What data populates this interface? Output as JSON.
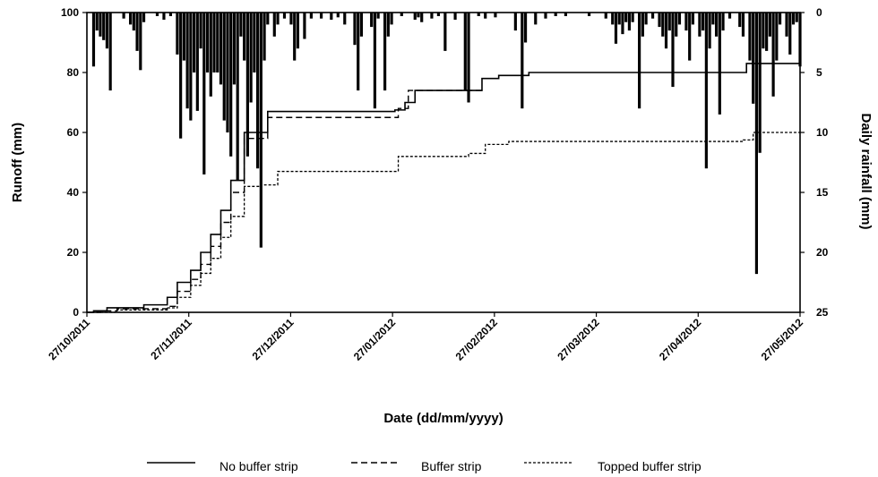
{
  "chart_data": {
    "type": "line",
    "title": "",
    "xlabel": "Date (dd/mm/yyyy)",
    "ylabel": "Runoff (mm)",
    "y2label": "Daily rainfall (mm)",
    "ylim": [
      0,
      100
    ],
    "y2lim": [
      0,
      25
    ],
    "y2_inverted": true,
    "xlim": [
      "2011-10-27",
      "2012-05-27"
    ],
    "y_ticks": [
      "0",
      "20",
      "40",
      "60",
      "80",
      "100"
    ],
    "y2_ticks": [
      "0",
      "5",
      "10",
      "15",
      "20",
      "25"
    ],
    "x_ticks": [
      "27/10/2011",
      "27/11/2011",
      "27/12/2011",
      "27/01/2012",
      "27/02/2012",
      "27/03/2012",
      "27/04/2012",
      "27/05/2012"
    ],
    "grid": false,
    "legend_position": "bottom",
    "series": [
      {
        "name": "No buffer strip",
        "dash": "solid",
        "points": [
          [
            "2011-10-27",
            0
          ],
          [
            "2011-10-29",
            0.5
          ],
          [
            "2011-11-02",
            1.5
          ],
          [
            "2011-11-13",
            2.5
          ],
          [
            "2011-11-20",
            5
          ],
          [
            "2011-11-23",
            10
          ],
          [
            "2011-11-27",
            14
          ],
          [
            "2011-11-30",
            20
          ],
          [
            "2011-12-03",
            26
          ],
          [
            "2011-12-06",
            34
          ],
          [
            "2011-12-09",
            44
          ],
          [
            "2011-12-13",
            60
          ],
          [
            "2011-12-20",
            67
          ],
          [
            "2012-01-27",
            67.5
          ],
          [
            "2012-01-30",
            70
          ],
          [
            "2012-02-02",
            74
          ],
          [
            "2012-02-22",
            78
          ],
          [
            "2012-02-27",
            79
          ],
          [
            "2012-03-07",
            80
          ],
          [
            "2012-05-05",
            80
          ],
          [
            "2012-05-11",
            83
          ],
          [
            "2012-05-27",
            83.5
          ]
        ]
      },
      {
        "name": "Buffer strip",
        "dash": "dashed",
        "points": [
          [
            "2011-10-27",
            0
          ],
          [
            "2011-10-31",
            0.5
          ],
          [
            "2011-11-05",
            1.2
          ],
          [
            "2011-11-20",
            2
          ],
          [
            "2011-11-23",
            7
          ],
          [
            "2011-11-27",
            11
          ],
          [
            "2011-11-30",
            16
          ],
          [
            "2011-12-03",
            22
          ],
          [
            "2011-12-06",
            30
          ],
          [
            "2011-12-09",
            40
          ],
          [
            "2011-12-13",
            58
          ],
          [
            "2011-12-20",
            65
          ],
          [
            "2012-01-25",
            65
          ],
          [
            "2012-01-28",
            68
          ],
          [
            "2012-01-31",
            74
          ],
          [
            "2012-02-22",
            74
          ]
        ]
      },
      {
        "name": "Topped buffer strip",
        "dash": "dotted-dash",
        "points": [
          [
            "2011-10-27",
            0
          ],
          [
            "2011-11-05",
            0.8
          ],
          [
            "2011-11-20",
            1.5
          ],
          [
            "2011-11-23",
            5
          ],
          [
            "2011-11-27",
            9
          ],
          [
            "2011-11-30",
            13
          ],
          [
            "2011-12-03",
            18
          ],
          [
            "2011-12-06",
            25
          ],
          [
            "2011-12-09",
            32
          ],
          [
            "2011-12-13",
            42
          ],
          [
            "2011-12-18",
            42.5
          ],
          [
            "2011-12-23",
            47
          ],
          [
            "2012-01-22",
            47
          ],
          [
            "2012-01-28",
            52
          ],
          [
            "2012-02-18",
            53
          ],
          [
            "2012-02-23",
            56
          ],
          [
            "2012-03-01",
            57
          ],
          [
            "2012-04-25",
            57
          ],
          [
            "2012-05-10",
            57.5
          ],
          [
            "2012-05-13",
            60
          ],
          [
            "2012-05-27",
            60
          ]
        ]
      }
    ],
    "rainfall": [
      [
        "2011-10-29",
        4.5
      ],
      [
        "2011-10-30",
        1.5
      ],
      [
        "2011-10-31",
        2
      ],
      [
        "2011-11-01",
        2.3
      ],
      [
        "2011-11-02",
        3
      ],
      [
        "2011-11-03",
        6.5
      ],
      [
        "2011-11-07",
        0.5
      ],
      [
        "2011-11-09",
        1
      ],
      [
        "2011-11-10",
        1.5
      ],
      [
        "2011-11-11",
        3.2
      ],
      [
        "2011-11-12",
        4.8
      ],
      [
        "2011-11-13",
        0.8
      ],
      [
        "2011-11-17",
        0.3
      ],
      [
        "2011-11-19",
        0.6
      ],
      [
        "2011-11-21",
        0.3
      ],
      [
        "2011-11-23",
        3.5
      ],
      [
        "2011-11-24",
        10.5
      ],
      [
        "2011-11-25",
        4
      ],
      [
        "2011-11-26",
        8
      ],
      [
        "2011-11-27",
        9
      ],
      [
        "2011-11-28",
        5
      ],
      [
        "2011-11-29",
        8.2
      ],
      [
        "2011-11-30",
        3
      ],
      [
        "2011-12-01",
        13.5
      ],
      [
        "2011-12-02",
        5
      ],
      [
        "2011-12-03",
        7
      ],
      [
        "2011-12-04",
        5
      ],
      [
        "2011-12-05",
        5
      ],
      [
        "2011-12-06",
        6
      ],
      [
        "2011-12-07",
        9
      ],
      [
        "2011-12-08",
        10
      ],
      [
        "2011-12-09",
        12
      ],
      [
        "2011-12-10",
        6
      ],
      [
        "2011-12-11",
        14
      ],
      [
        "2011-12-12",
        2
      ],
      [
        "2011-12-13",
        4
      ],
      [
        "2011-12-14",
        12
      ],
      [
        "2011-12-15",
        7.5
      ],
      [
        "2011-12-16",
        5
      ],
      [
        "2011-12-17",
        13
      ],
      [
        "2011-12-18",
        19.6
      ],
      [
        "2011-12-19",
        4
      ],
      [
        "2011-12-20",
        1
      ],
      [
        "2011-12-22",
        2
      ],
      [
        "2011-12-23",
        1
      ],
      [
        "2011-12-25",
        0.5
      ],
      [
        "2011-12-27",
        1
      ],
      [
        "2011-12-28",
        4
      ],
      [
        "2011-12-29",
        3
      ],
      [
        "2011-12-31",
        2.2
      ],
      [
        "2012-01-02",
        0.5
      ],
      [
        "2012-01-05",
        0.5
      ],
      [
        "2012-01-08",
        0.6
      ],
      [
        "2012-01-10",
        0.4
      ],
      [
        "2012-01-12",
        1
      ],
      [
        "2012-01-15",
        2.7
      ],
      [
        "2012-01-16",
        6.5
      ],
      [
        "2012-01-17",
        2
      ],
      [
        "2012-01-20",
        1.2
      ],
      [
        "2012-01-21",
        8
      ],
      [
        "2012-01-22",
        0.5
      ],
      [
        "2012-01-24",
        6.5
      ],
      [
        "2012-01-25",
        2
      ],
      [
        "2012-01-26",
        1
      ],
      [
        "2012-01-29",
        0.3
      ],
      [
        "2012-02-02",
        0.6
      ],
      [
        "2012-02-03",
        0.4
      ],
      [
        "2012-02-04",
        0.8
      ],
      [
        "2012-02-07",
        0.5
      ],
      [
        "2012-02-09",
        0.3
      ],
      [
        "2012-02-11",
        3.2
      ],
      [
        "2012-02-14",
        0.6
      ],
      [
        "2012-02-17",
        6.5
      ],
      [
        "2012-02-18",
        7.5
      ],
      [
        "2012-02-21",
        0.3
      ],
      [
        "2012-02-23",
        0.5
      ],
      [
        "2012-02-26",
        0.4
      ],
      [
        "2012-03-03",
        1.5
      ],
      [
        "2012-03-05",
        8
      ],
      [
        "2012-03-06",
        2.5
      ],
      [
        "2012-03-09",
        1
      ],
      [
        "2012-03-12",
        0.5
      ],
      [
        "2012-03-15",
        0.3
      ],
      [
        "2012-03-18",
        0.3
      ],
      [
        "2012-03-25",
        0.3
      ],
      [
        "2012-03-30",
        0.5
      ],
      [
        "2012-04-01",
        1
      ],
      [
        "2012-04-02",
        2.6
      ],
      [
        "2012-04-03",
        1
      ],
      [
        "2012-04-04",
        1.8
      ],
      [
        "2012-04-05",
        0.8
      ],
      [
        "2012-04-06",
        1.5
      ],
      [
        "2012-04-07",
        0.8
      ],
      [
        "2012-04-09",
        8
      ],
      [
        "2012-04-10",
        2
      ],
      [
        "2012-04-11",
        1
      ],
      [
        "2012-04-13",
        0.5
      ],
      [
        "2012-04-15",
        1.2
      ],
      [
        "2012-04-16",
        2
      ],
      [
        "2012-04-17",
        3
      ],
      [
        "2012-04-18",
        1.5
      ],
      [
        "2012-04-19",
        6.2
      ],
      [
        "2012-04-20",
        2
      ],
      [
        "2012-04-21",
        1
      ],
      [
        "2012-04-23",
        1.5
      ],
      [
        "2012-04-24",
        4
      ],
      [
        "2012-04-25",
        1
      ],
      [
        "2012-04-27",
        2
      ],
      [
        "2012-04-28",
        1.5
      ],
      [
        "2012-04-29",
        13
      ],
      [
        "2012-04-30",
        3
      ],
      [
        "2012-05-01",
        1
      ],
      [
        "2012-05-02",
        2
      ],
      [
        "2012-05-03",
        8.5
      ],
      [
        "2012-05-04",
        1.5
      ],
      [
        "2012-05-06",
        0.5
      ],
      [
        "2012-05-09",
        1.2
      ],
      [
        "2012-05-10",
        2
      ],
      [
        "2012-05-12",
        4
      ],
      [
        "2012-05-13",
        7.6
      ],
      [
        "2012-05-14",
        21.8
      ],
      [
        "2012-05-15",
        11.7
      ],
      [
        "2012-05-16",
        3
      ],
      [
        "2012-05-17",
        3.2
      ],
      [
        "2012-05-18",
        2
      ],
      [
        "2012-05-19",
        7
      ],
      [
        "2012-05-20",
        4
      ],
      [
        "2012-05-21",
        1
      ],
      [
        "2012-05-23",
        2
      ],
      [
        "2012-05-24",
        3.5
      ],
      [
        "2012-05-25",
        1
      ],
      [
        "2012-05-26",
        0.8
      ],
      [
        "2012-05-27",
        4.5
      ]
    ]
  }
}
